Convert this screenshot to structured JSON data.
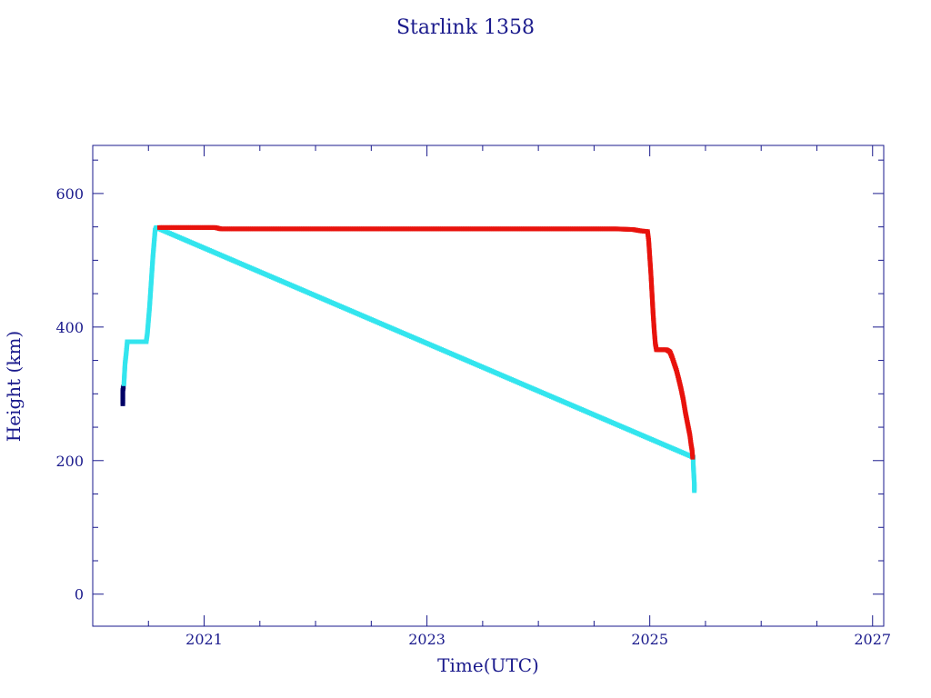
{
  "chart_data": {
    "type": "scatter",
    "title": "Starlink 1358",
    "xlabel": "Time(UTC)",
    "ylabel": "Height (km)",
    "xlim": [
      2020.0,
      2027.1
    ],
    "ylim": [
      -48,
      672
    ],
    "x_ticks": [
      2021,
      2023,
      2025,
      2027
    ],
    "x_tick_labels": [
      "2021",
      "2023",
      "2025",
      "2027"
    ],
    "y_ticks": [
      0,
      200,
      400,
      600
    ],
    "y_tick_labels": [
      "0",
      "200",
      "400",
      "600"
    ],
    "grid": false,
    "colors": {
      "axis": "#1a1a8c",
      "maneuver": "#33e5ee",
      "stable": "#e8120c",
      "early": "#000066"
    },
    "series": [
      {
        "color": "#000066",
        "points": [
          [
            2020.27,
            285
          ],
          [
            2020.27,
            295
          ],
          [
            2020.27,
            305
          ],
          [
            2020.275,
            310
          ]
        ]
      },
      {
        "color": "#33e5ee",
        "points": [
          [
            2020.28,
            315
          ],
          [
            2020.285,
            330
          ],
          [
            2020.29,
            345
          ],
          [
            2020.3,
            360
          ],
          [
            2020.31,
            378
          ],
          [
            2020.33,
            378
          ],
          [
            2020.36,
            378
          ],
          [
            2020.39,
            378
          ],
          [
            2020.42,
            378
          ],
          [
            2020.45,
            378
          ],
          [
            2020.48,
            378
          ],
          [
            2020.49,
            390
          ],
          [
            2020.5,
            410
          ],
          [
            2020.51,
            430
          ],
          [
            2020.52,
            455
          ],
          [
            2020.53,
            480
          ],
          [
            2020.54,
            505
          ],
          [
            2020.55,
            525
          ],
          [
            2020.56,
            545
          ],
          [
            2020.57,
            549
          ],
          [
            2025.39,
            205
          ],
          [
            2025.39,
            195
          ],
          [
            2025.395,
            180
          ],
          [
            2025.4,
            165
          ],
          [
            2025.4,
            155
          ]
        ]
      },
      {
        "color": "#e8120c",
        "points": [
          [
            2020.6,
            549
          ],
          [
            2020.8,
            549
          ],
          [
            2021.0,
            549
          ],
          [
            2021.1,
            549
          ],
          [
            2021.15,
            547
          ],
          [
            2021.4,
            547
          ],
          [
            2021.7,
            547
          ],
          [
            2022.0,
            547
          ],
          [
            2022.3,
            547
          ],
          [
            2022.6,
            547
          ],
          [
            2022.9,
            547
          ],
          [
            2023.2,
            547
          ],
          [
            2023.5,
            547
          ],
          [
            2023.8,
            547
          ],
          [
            2024.1,
            547
          ],
          [
            2024.4,
            547
          ],
          [
            2024.7,
            547
          ],
          [
            2024.85,
            546
          ],
          [
            2024.92,
            544
          ],
          [
            2024.98,
            543
          ],
          [
            2024.99,
            530
          ],
          [
            2025.0,
            505
          ],
          [
            2025.01,
            480
          ],
          [
            2025.02,
            450
          ],
          [
            2025.03,
            420
          ],
          [
            2025.04,
            395
          ],
          [
            2025.05,
            375
          ],
          [
            2025.06,
            366
          ],
          [
            2025.1,
            366
          ],
          [
            2025.15,
            366
          ],
          [
            2025.18,
            363
          ],
          [
            2025.2,
            355
          ],
          [
            2025.22,
            345
          ],
          [
            2025.24,
            335
          ],
          [
            2025.26,
            322
          ],
          [
            2025.28,
            308
          ],
          [
            2025.3,
            292
          ],
          [
            2025.32,
            272
          ],
          [
            2025.34,
            255
          ],
          [
            2025.36,
            238
          ],
          [
            2025.37,
            225
          ],
          [
            2025.38,
            215
          ],
          [
            2025.385,
            205
          ]
        ]
      }
    ]
  }
}
